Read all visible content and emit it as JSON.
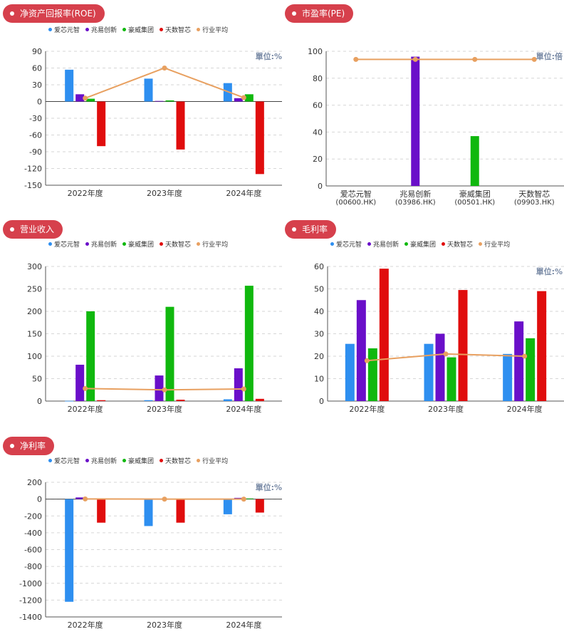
{
  "legend": [
    {
      "label": "爱芯元智",
      "color": "#2e8ff0"
    },
    {
      "label": "兆易创新",
      "color": "#6a0fc9"
    },
    {
      "label": "豪威集团",
      "color": "#10b80e"
    },
    {
      "label": "天数智芯",
      "color": "#e00d0d"
    },
    {
      "label": "行业平均",
      "color": "#e8a060"
    }
  ],
  "panels": {
    "roe": {
      "title": "净资产回报率(ROE)",
      "unit": "單位:%"
    },
    "pe": {
      "title": "市盈率(PE)",
      "unit": "單位:倍"
    },
    "revenue": {
      "title": "营业收入",
      "unit": ""
    },
    "gross": {
      "title": "毛利率",
      "unit": "單位:%"
    },
    "net": {
      "title": "净利率",
      "unit": "單位:%"
    }
  },
  "chart_data": [
    {
      "id": "roe",
      "type": "bar",
      "title": "净资产回报率(ROE)",
      "categories": [
        "2022年度",
        "2023年度",
        "2024年度"
      ],
      "yticks": [
        90,
        60,
        30,
        0,
        -30,
        -60,
        -90,
        -120,
        -150
      ],
      "ylim": [
        -150,
        90
      ],
      "series": [
        {
          "name": "爱芯元智",
          "values": [
            57,
            41,
            33
          ]
        },
        {
          "name": "兆易创新",
          "values": [
            13,
            1,
            6
          ]
        },
        {
          "name": "豪威集团",
          "values": [
            5,
            2,
            13
          ]
        },
        {
          "name": "天数智芯",
          "values": [
            -80,
            -86,
            -130
          ]
        }
      ],
      "line": {
        "name": "行业平均",
        "values": [
          6,
          60,
          7
        ]
      }
    },
    {
      "id": "pe",
      "type": "bar",
      "title": "市盈率(PE)",
      "categories": [
        "爱芯元智\n(00600.HK)",
        "兆易创新\n(03986.HK)",
        "豪威集团\n(00501.HK)",
        "天数智芯\n(09903.HK)"
      ],
      "yticks": [
        100,
        80,
        60,
        40,
        20,
        0
      ],
      "ylim": [
        0,
        100
      ],
      "values": [
        0,
        96,
        37,
        0
      ],
      "bar_colors": [
        "#2e8ff0",
        "#6a0fc9",
        "#10b80e",
        "#e00d0d"
      ],
      "line": {
        "name": "行业平均",
        "values": [
          94,
          94,
          94,
          94
        ]
      }
    },
    {
      "id": "revenue",
      "type": "bar",
      "title": "营业收入",
      "categories": [
        "2022年度",
        "2023年度",
        "2024年度"
      ],
      "yticks": [
        300,
        250,
        200,
        150,
        100,
        50,
        0
      ],
      "ylim": [
        0,
        300
      ],
      "series": [
        {
          "name": "爱芯元智",
          "values": [
            0.5,
            2,
            4
          ]
        },
        {
          "name": "兆易创新",
          "values": [
            81,
            57,
            73
          ]
        },
        {
          "name": "豪威集团",
          "values": [
            200,
            210,
            257
          ]
        },
        {
          "name": "天数智芯",
          "values": [
            2,
            3,
            5
          ]
        }
      ],
      "line": {
        "name": "行业平均",
        "values": [
          28,
          25,
          27
        ]
      }
    },
    {
      "id": "gross",
      "type": "bar",
      "title": "毛利率",
      "categories": [
        "2022年度",
        "2023年度",
        "2024年度"
      ],
      "yticks": [
        60,
        50,
        40,
        30,
        20,
        10,
        0
      ],
      "ylim": [
        0,
        60
      ],
      "series": [
        {
          "name": "爱芯元智",
          "values": [
            25.5,
            25.5,
            21
          ]
        },
        {
          "name": "兆易创新",
          "values": [
            45,
            30,
            35.5
          ]
        },
        {
          "name": "豪威集团",
          "values": [
            23.5,
            19.5,
            28
          ]
        },
        {
          "name": "天数智芯",
          "values": [
            59,
            49.5,
            49
          ]
        }
      ],
      "line": {
        "name": "行业平均",
        "values": [
          18,
          21,
          20
        ]
      }
    },
    {
      "id": "net",
      "type": "bar",
      "title": "净利率",
      "categories": [
        "2022年度",
        "2023年度",
        "2024年度"
      ],
      "yticks": [
        200,
        0,
        -200,
        -400,
        -600,
        -800,
        -1000,
        -1200,
        -1400
      ],
      "ylim": [
        -1400,
        200
      ],
      "series": [
        {
          "name": "爱芯元智",
          "values": [
            -1220,
            -320,
            -180
          ]
        },
        {
          "name": "兆易创新",
          "values": [
            20,
            2,
            15
          ]
        },
        {
          "name": "豪威集团",
          "values": [
            5,
            2,
            8
          ]
        },
        {
          "name": "天数智芯",
          "values": [
            -280,
            -280,
            -160
          ]
        }
      ],
      "line": {
        "name": "行业平均",
        "values": [
          2,
          0,
          0
        ]
      }
    }
  ]
}
